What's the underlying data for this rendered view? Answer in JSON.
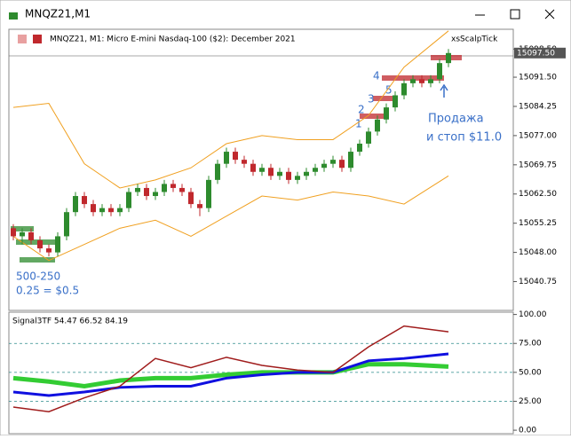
{
  "window": {
    "title": "MNQZ21,M1"
  },
  "chart_data": {
    "type": "candlestick",
    "title": "MNQZ21, M1:  Micro E-mini Nasdaq-100 ($2): December 2021",
    "indicator_name": "xsScalpTick",
    "open": [
      15054,
      15052,
      15053,
      15051,
      15049,
      15048,
      15052,
      15058,
      15062,
      15060,
      15058,
      15059,
      15058,
      15059,
      15063,
      15064,
      15062,
      15063,
      15065,
      15064,
      15063,
      15060,
      15059,
      15066,
      15070,
      15073,
      15071,
      15070,
      15068,
      15069,
      15067,
      15068,
      15066,
      15067,
      15068,
      15069,
      15070,
      15071,
      15069,
      15073,
      15075,
      15078,
      15081,
      15084,
      15087,
      15090,
      15091,
      15090,
      15091,
      15095
    ],
    "high": [
      15055,
      15054,
      15054,
      15052,
      15050,
      15053,
      15059,
      15063,
      15063,
      15061,
      15060,
      15060,
      15060,
      15064,
      15065,
      15065,
      15064,
      15066,
      15066,
      15065,
      15064,
      15061,
      15067,
      15071,
      15074,
      15074,
      15072,
      15071,
      15070,
      15070,
      15069,
      15069,
      15068,
      15069,
      15070,
      15071,
      15072,
      15072,
      15074,
      15076,
      15079,
      15082,
      15085,
      15088,
      15091,
      15092,
      15092,
      15092,
      15096,
      15098.5
    ],
    "low": [
      15051,
      15050,
      15050,
      15048,
      15047,
      15047,
      15051,
      15057,
      15059,
      15057,
      15057,
      15057,
      15057,
      15058,
      15062,
      15061,
      15061,
      15062,
      15063,
      15062,
      15059,
      15057,
      15058,
      15065,
      15069,
      15070,
      15069,
      15067,
      15067,
      15066,
      15066,
      15065,
      15065,
      15066,
      15067,
      15068,
      15069,
      15068,
      15068,
      15072,
      15074,
      15077,
      15080,
      15083,
      15086,
      15089,
      15089,
      15089,
      15090,
      15094
    ],
    "close": [
      15052,
      15053,
      15051,
      15049,
      15048,
      15052,
      15058,
      15062,
      15060,
      15058,
      15059,
      15058,
      15059,
      15063,
      15064,
      15062,
      15063,
      15065,
      15064,
      15063,
      15060,
      15059,
      15066,
      15070,
      15073,
      15071,
      15070,
      15068,
      15069,
      15067,
      15068,
      15066,
      15067,
      15068,
      15069,
      15070,
      15071,
      15069,
      15073,
      15075,
      15078,
      15081,
      15084,
      15087,
      15090,
      15091,
      15090,
      15091,
      15095,
      15097.5
    ],
    "up_color": "#2e8b2e",
    "down_color": "#c0282d",
    "ylim": [
      15033.6,
      15103.4
    ],
    "yticks": [
      {
        "value": 15098.5,
        "label": "15098.50"
      },
      {
        "value": 15091.5,
        "label": "15091.50"
      },
      {
        "value": 15084.25,
        "label": "15084.25"
      },
      {
        "value": 15077,
        "label": "15077.00"
      },
      {
        "value": 15069.75,
        "label": "15069.75"
      },
      {
        "value": 15062.5,
        "label": "15062.50"
      },
      {
        "value": 15055.25,
        "label": "15055.25"
      },
      {
        "value": 15048,
        "label": "15048.00"
      },
      {
        "value": 15040.75,
        "label": "15040.75"
      }
    ],
    "current_price": {
      "value": 15097.5,
      "label": "15097.50"
    },
    "bands": {
      "x": [
        0,
        4,
        8,
        12,
        16,
        20,
        24,
        28,
        32,
        36,
        40,
        44,
        49
      ],
      "color": "#f0a020",
      "upper": [
        15084,
        15085,
        15070,
        15064,
        15066,
        15069,
        15075,
        15077,
        15076,
        15076,
        15082,
        15094,
        15103
      ],
      "lower": [
        15052,
        15046,
        15050,
        15054,
        15056,
        15052,
        15057,
        15062,
        15061,
        15063,
        15062,
        15060,
        15067
      ]
    },
    "annotations": [
      "500-250",
      "0.25 = $0.5",
      "Продажа",
      "и стоп $11.0",
      "1",
      "2",
      "3",
      "4",
      "5"
    ]
  },
  "indicator": {
    "type": "line",
    "title": "Signal3TF 54.47 66.52 84.19",
    "x": [
      0,
      4,
      8,
      12,
      16,
      20,
      24,
      28,
      32,
      36,
      40,
      44,
      49
    ],
    "series": [
      {
        "color": "#a01c1c",
        "width": 1.5,
        "values": [
          20,
          16,
          28,
          38,
          62,
          54,
          63,
          56,
          52,
          50,
          72,
          90,
          85
        ]
      },
      {
        "color": "#1010e0",
        "width": 3,
        "values": [
          33,
          30,
          33,
          37,
          38,
          38,
          45,
          48,
          50,
          50,
          60,
          62,
          66
        ]
      },
      {
        "color": "#33cc33",
        "width": 5,
        "values": [
          45,
          42,
          38,
          43,
          45,
          45,
          48,
          50,
          50,
          50,
          57,
          57,
          55
        ]
      }
    ],
    "ylim": [
      -3,
      102
    ],
    "yticks": [
      {
        "value": 100,
        "label": "100.00"
      },
      {
        "value": 75,
        "label": "75.00"
      },
      {
        "value": 50,
        "label": "50.00"
      },
      {
        "value": 25,
        "label": "25.00"
      },
      {
        "value": 0,
        "label": "0.00"
      }
    ],
    "dashed": [
      75,
      50,
      25
    ]
  }
}
